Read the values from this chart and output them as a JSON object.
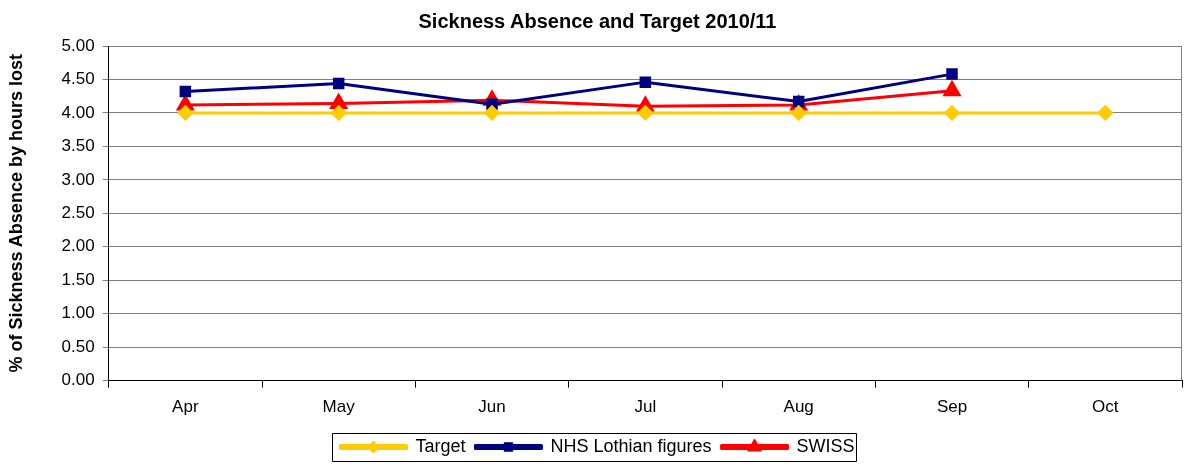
{
  "chart_data": {
    "type": "line",
    "title": "Sickness Absence and Target 2010/11",
    "ylabel": "% of Sickness Absence by hours lost",
    "categories": [
      "Apr",
      "May",
      "Jun",
      "Jul",
      "Aug",
      "Sep",
      "Oct"
    ],
    "series": [
      {
        "name": "Target",
        "color": "#ffcc00",
        "marker": "diamond",
        "values": [
          4,
          4,
          4,
          4,
          4,
          4,
          4
        ]
      },
      {
        "name": "NHS Lothian figures",
        "color": "#000080",
        "marker": "square",
        "values": [
          4.32,
          4.44,
          4.13,
          4.46,
          4.17,
          4.58,
          null
        ]
      },
      {
        "name": "SWISS",
        "color": "#ff0000",
        "marker": "triangle",
        "values": [
          4.12,
          4.14,
          4.19,
          4.1,
          4.12,
          4.33,
          null
        ]
      }
    ],
    "ylim": [
      0,
      5
    ],
    "yticks": [
      {
        "value": 0,
        "label": "0.00"
      },
      {
        "value": 0.5,
        "label": "0.50"
      },
      {
        "value": 1,
        "label": "1.00"
      },
      {
        "value": 1.5,
        "label": "1.50"
      },
      {
        "value": 2,
        "label": "2.00"
      },
      {
        "value": 2.5,
        "label": "2.50"
      },
      {
        "value": 3,
        "label": "3.00"
      },
      {
        "value": 3.5,
        "label": "3.50"
      },
      {
        "value": 4,
        "label": "4.00"
      },
      {
        "value": 4.5,
        "label": "4.50"
      },
      {
        "value": 5,
        "label": "5.00"
      }
    ],
    "grid": "y",
    "legend": "bottom",
    "line_style": "solid"
  }
}
